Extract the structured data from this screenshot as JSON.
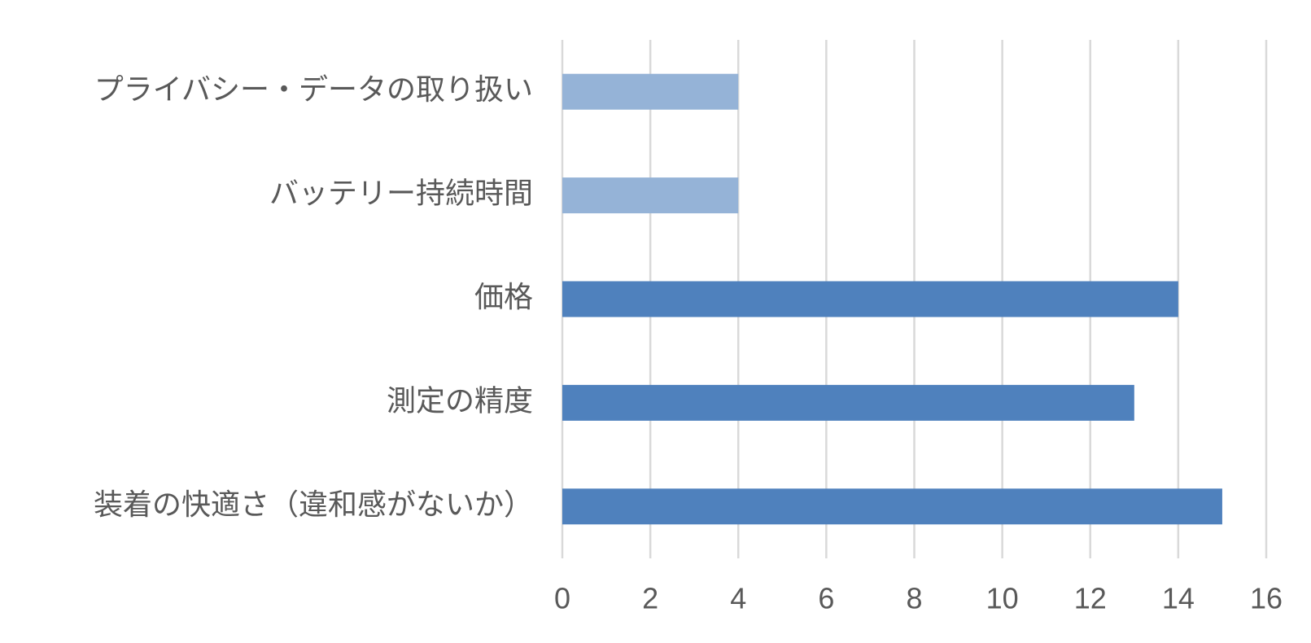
{
  "chart_data": {
    "type": "bar",
    "orientation": "horizontal",
    "categories": [
      "プライバシー・データの取り扱い",
      "バッテリー持続時間",
      "価格",
      "測定の精度",
      "装着の快適さ（違和感がないか）"
    ],
    "values": [
      4,
      4,
      14,
      13,
      15
    ],
    "colors": [
      "#95b3d7",
      "#95b3d7",
      "#4f81bd",
      "#4f81bd",
      "#4f81bd"
    ],
    "xlim": [
      0,
      16
    ],
    "xticks": [
      0,
      2,
      4,
      6,
      8,
      10,
      12,
      14,
      16
    ],
    "grid": true
  }
}
